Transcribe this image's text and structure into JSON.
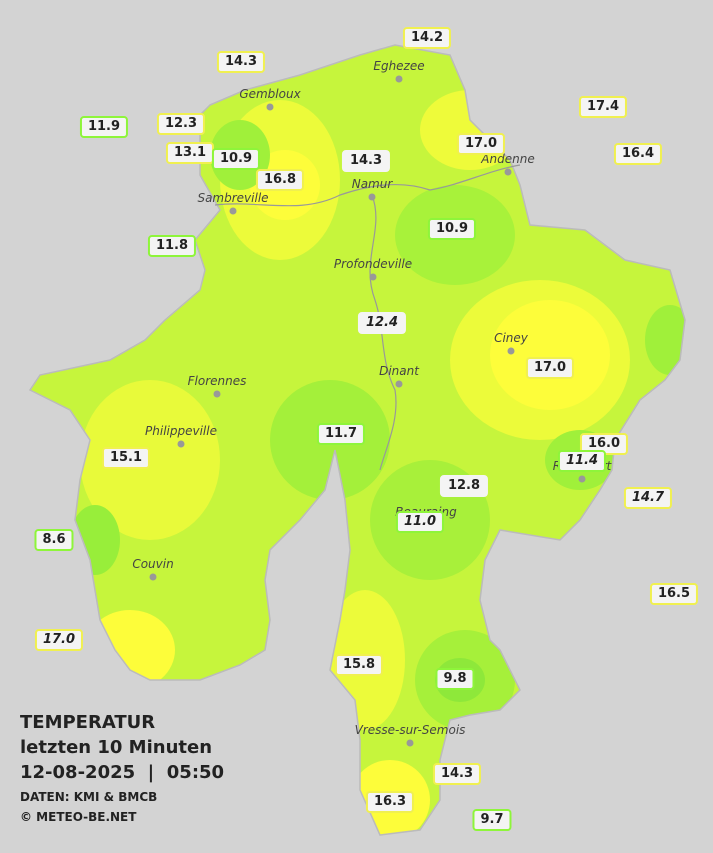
{
  "title": "TEMPERATUR",
  "subtitle": "letzten 10 Minuten",
  "datetime": "12-08-2025  |  05:50",
  "source": "DATEN: KMI & BMCB",
  "copyright": "© METEO-BE.NET",
  "towns": [
    "Eghezee",
    "Gembloux",
    "Andenne",
    "Namur",
    "Sambreville",
    "Profondeville",
    "Ciney",
    "Dinant",
    "Florennes",
    "Philippeville",
    "Rochefort",
    "Beauraing",
    "Couvin",
    "Vresse-sur-Semois"
  ],
  "stations": [
    {
      "value": "14.2"
    },
    {
      "value": "14.3"
    },
    {
      "value": "17.4"
    },
    {
      "value": "11.9"
    },
    {
      "value": "12.3"
    },
    {
      "value": "13.1"
    },
    {
      "value": "10.9"
    },
    {
      "value": "16.8"
    },
    {
      "value": "14.3"
    },
    {
      "value": "17.0"
    },
    {
      "value": "16.4"
    },
    {
      "value": "11.8"
    },
    {
      "value": "10.9"
    },
    {
      "value": "12.4",
      "italic": true
    },
    {
      "value": "17.0"
    },
    {
      "value": "11.7"
    },
    {
      "value": "16.0"
    },
    {
      "value": "11.4",
      "italic": true
    },
    {
      "value": "15.1"
    },
    {
      "value": "12.8"
    },
    {
      "value": "14.7",
      "italic": true
    },
    {
      "value": "11.0",
      "italic": true
    },
    {
      "value": "8.6"
    },
    {
      "value": "16.5"
    },
    {
      "value": "17.0",
      "italic": true
    },
    {
      "value": "15.8"
    },
    {
      "value": "9.8"
    },
    {
      "value": "14.3"
    },
    {
      "value": "16.3"
    },
    {
      "value": "9.7"
    }
  ]
}
